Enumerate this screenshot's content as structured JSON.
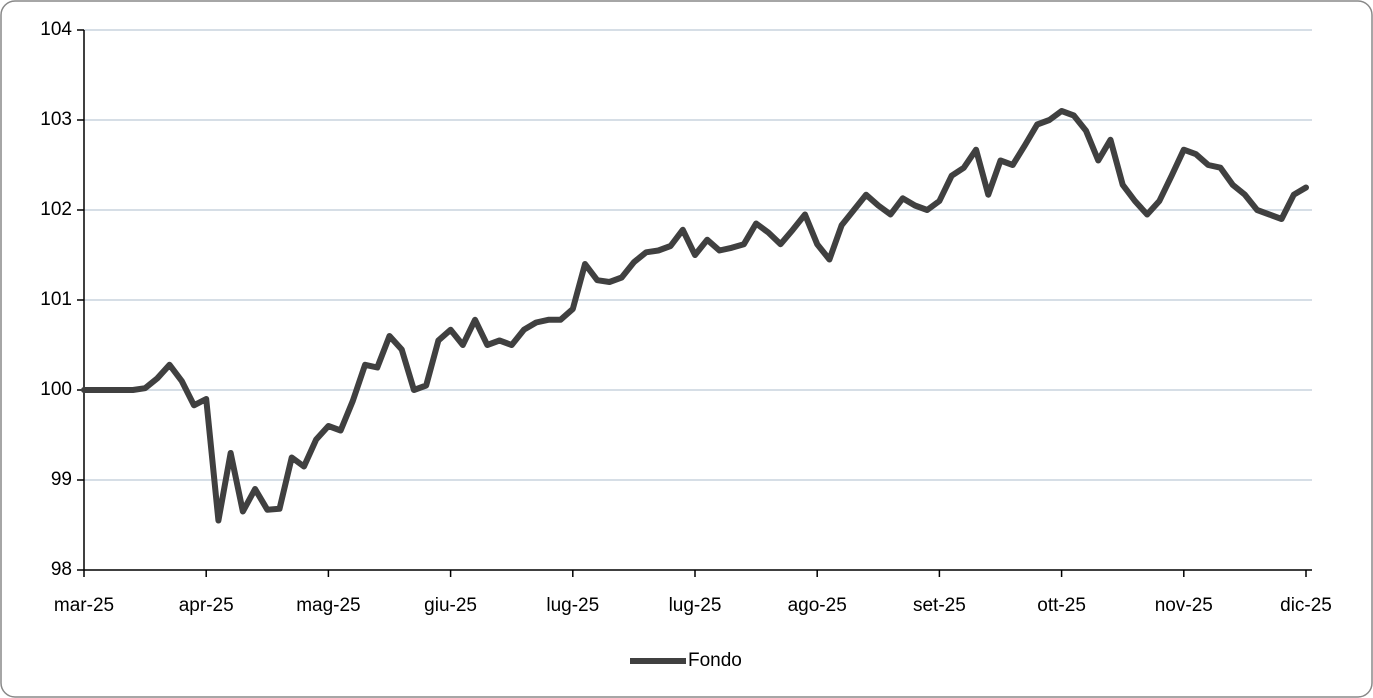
{
  "chart_data": {
    "type": "line",
    "categories": [
      "mar-25",
      null,
      null,
      null,
      null,
      null,
      null,
      null,
      null,
      null,
      "apr-25",
      null,
      null,
      null,
      null,
      null,
      null,
      null,
      null,
      null,
      "mag-25",
      null,
      null,
      null,
      null,
      null,
      null,
      null,
      null,
      null,
      "giu-25",
      null,
      null,
      null,
      null,
      null,
      null,
      null,
      null,
      null,
      "lug-25",
      null,
      null,
      null,
      null,
      null,
      null,
      null,
      null,
      null,
      "lug-25",
      null,
      null,
      null,
      null,
      null,
      null,
      null,
      null,
      null,
      "ago-25",
      null,
      null,
      null,
      null,
      null,
      null,
      null,
      null,
      null,
      "set-25",
      null,
      null,
      null,
      null,
      null,
      null,
      null,
      null,
      null,
      "ott-25",
      null,
      null,
      null,
      null,
      null,
      null,
      null,
      null,
      null,
      "nov-25",
      null,
      null,
      null,
      null,
      null,
      null,
      null,
      null,
      null,
      "dic-25"
    ],
    "series": [
      {
        "name": "Fondo",
        "color": "#404040",
        "values": [
          100.0,
          100.0,
          100.0,
          100.0,
          100.0,
          100.02,
          100.13,
          100.28,
          100.1,
          99.83,
          99.9,
          98.55,
          99.3,
          98.65,
          98.9,
          98.67,
          98.68,
          99.25,
          99.15,
          99.45,
          99.6,
          99.55,
          99.88,
          100.28,
          100.25,
          100.6,
          100.45,
          100.0,
          100.05,
          100.55,
          100.67,
          100.5,
          100.78,
          100.5,
          100.55,
          100.5,
          100.67,
          100.75,
          100.78,
          100.78,
          100.9,
          101.4,
          101.22,
          101.2,
          101.25,
          101.42,
          101.53,
          101.55,
          101.6,
          101.78,
          101.5,
          101.67,
          101.55,
          101.58,
          101.62,
          101.85,
          101.75,
          101.62,
          101.78,
          101.95,
          101.62,
          101.45,
          101.83,
          102.0,
          102.17,
          102.05,
          101.95,
          102.13,
          102.05,
          102.0,
          102.1,
          102.38,
          102.47,
          102.67,
          102.17,
          102.55,
          102.5,
          102.72,
          102.95,
          103.0,
          103.1,
          103.05,
          102.88,
          102.55,
          102.78,
          102.28,
          102.1,
          101.95,
          102.1,
          102.38,
          102.67,
          102.62,
          102.5,
          102.47,
          102.28,
          102.17,
          102.0,
          101.95,
          101.9,
          102.17,
          102.25
        ]
      }
    ],
    "ylim": [
      98,
      104
    ],
    "yticks": [
      98,
      99,
      100,
      101,
      102,
      103,
      104
    ],
    "grid": true,
    "legend": "bottom"
  }
}
